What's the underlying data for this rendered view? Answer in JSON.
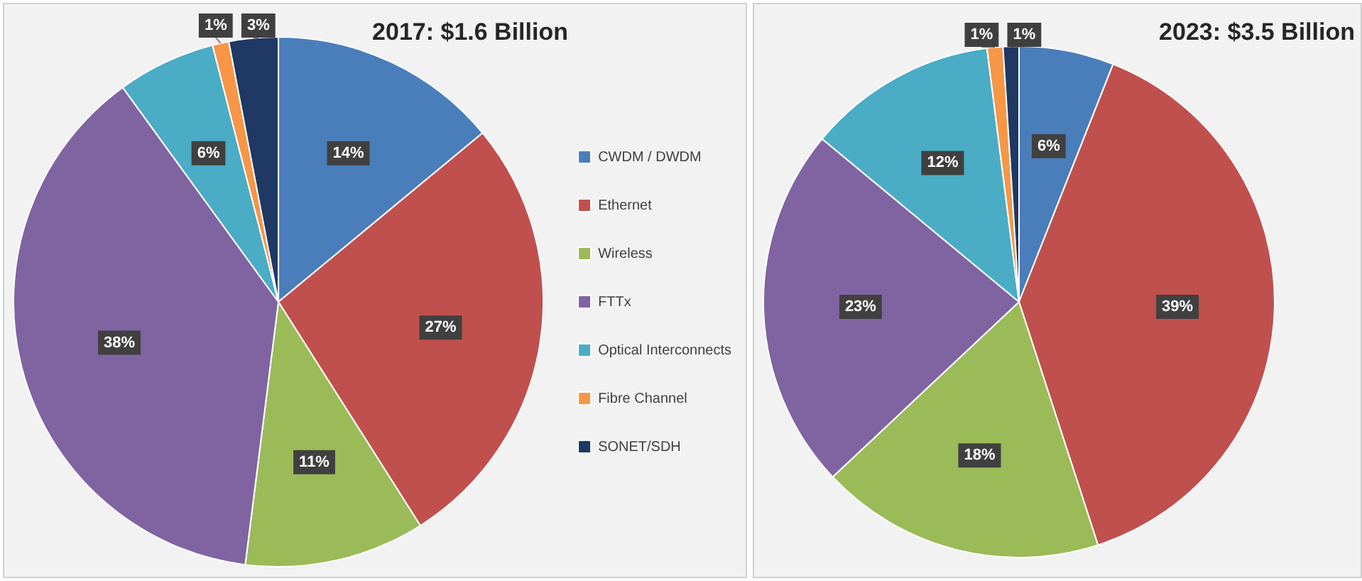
{
  "chart_data": [
    {
      "type": "pie",
      "title": "2017: $1.6 Billion",
      "categories": [
        "CWDM / DWDM",
        "Ethernet",
        "Wireless",
        "FTTx",
        "Optical Interconnects",
        "Fibre Channel",
        "SONET/SDH"
      ],
      "values": [
        14,
        27,
        11,
        38,
        6,
        1,
        3
      ],
      "value_labels": [
        "14%",
        "27%",
        "11%",
        "38%",
        "6%",
        "1%",
        "3%"
      ],
      "colors": [
        "#4a7ebb",
        "#c0504d",
        "#9bbb59",
        "#8064a2",
        "#4bacc6",
        "#f79646",
        "#1f3864"
      ],
      "legend": "right"
    },
    {
      "type": "pie",
      "title": "2023: $3.5 Billion",
      "categories": [
        null,
        null,
        null,
        null,
        null,
        null,
        null
      ],
      "values": [
        6,
        39,
        18,
        23,
        12,
        1,
        1
      ],
      "value_labels": [
        "6%",
        "39%",
        "18%",
        "23%",
        "12%",
        "1%",
        "1%"
      ],
      "colors": [
        "#4a7ebb",
        "#c0504d",
        "#9bbb59",
        "#8064a2",
        "#4bacc6",
        "#f79646",
        "#1f3864"
      ],
      "legend": false
    }
  ]
}
